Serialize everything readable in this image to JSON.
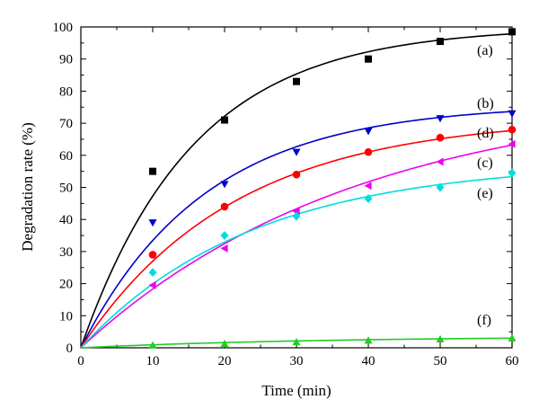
{
  "chart_data": {
    "type": "line",
    "xlabel": "Time (min)",
    "ylabel": "Degradation rate (%)",
    "xlim": [
      0,
      60
    ],
    "ylim": [
      0,
      100
    ],
    "x_ticks": [
      0,
      10,
      20,
      30,
      40,
      50,
      60
    ],
    "y_ticks": [
      0,
      10,
      20,
      30,
      40,
      50,
      60,
      70,
      80,
      90,
      100
    ],
    "x_minor_step": 5,
    "y_minor_step": 5,
    "grid": false,
    "series": [
      {
        "label": "(a)",
        "marker": "square",
        "color": "#000000",
        "x": [
          10,
          20,
          30,
          40,
          50,
          60
        ],
        "y": [
          55,
          71,
          83,
          90,
          95.5,
          98.5
        ],
        "fit_plateau": 100,
        "fit_rate": 0.064
      },
      {
        "label": "(b)",
        "marker": "triangle-down",
        "color": "#0000cc",
        "x": [
          10,
          20,
          30,
          40,
          50,
          60
        ],
        "y": [
          39,
          51,
          61,
          67.5,
          71.5,
          73
        ],
        "fit_plateau": 76,
        "fit_rate": 0.058
      },
      {
        "label": "(d)",
        "marker": "circle",
        "color": "#ff0000",
        "x": [
          10,
          20,
          30,
          40,
          50,
          60
        ],
        "y": [
          29,
          44,
          54,
          61,
          65.5,
          68
        ],
        "fit_plateau": 72,
        "fit_rate": 0.047
      },
      {
        "label": "(c)",
        "marker": "triangle-left",
        "color": "#ee00ee",
        "x": [
          10,
          20,
          30,
          40,
          50,
          60
        ],
        "y": [
          19.5,
          31,
          42.5,
          50.5,
          58,
          63.5
        ],
        "fit_plateau": 80,
        "fit_rate": 0.026
      },
      {
        "label": "(e)",
        "marker": "diamond",
        "color": "#00dddd",
        "x": [
          10,
          20,
          30,
          40,
          50,
          60
        ],
        "y": [
          23.5,
          35,
          41,
          46.5,
          50,
          54.5
        ],
        "fit_plateau": 58,
        "fit_rate": 0.042
      },
      {
        "label": "(f)",
        "marker": "triangle-up",
        "color": "#22cc22",
        "x": [
          10,
          20,
          30,
          40,
          50,
          60
        ],
        "y": [
          0.8,
          1.3,
          1.8,
          2.3,
          2.7,
          3.0
        ],
        "fit_plateau": 3.6,
        "fit_rate": 0.03
      }
    ]
  }
}
